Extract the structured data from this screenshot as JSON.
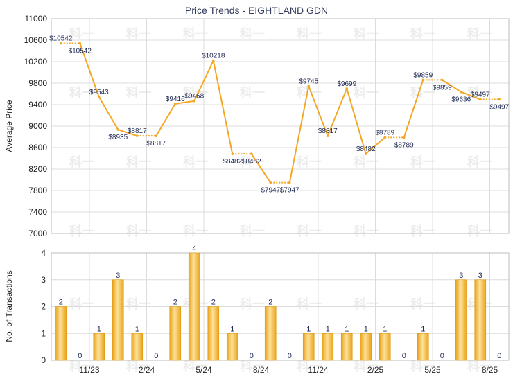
{
  "chart_data": [
    {
      "type": "line",
      "title": "Price Trends - EIGHTLAND GDN",
      "ylabel": "Average Price",
      "ylim": [
        7000,
        11000
      ],
      "yticks": [
        7000,
        7400,
        7800,
        8200,
        8600,
        9000,
        9400,
        9800,
        10200,
        10600,
        11000
      ],
      "xlim": [
        0,
        24
      ],
      "xticks": [
        {
          "x": 2,
          "label": "11/23"
        },
        {
          "x": 5,
          "label": "2/24"
        },
        {
          "x": 8,
          "label": "5/24"
        },
        {
          "x": 11,
          "label": "8/24"
        },
        {
          "x": 14,
          "label": "11/24"
        },
        {
          "x": 17,
          "label": "2/25"
        },
        {
          "x": 20,
          "label": "5/25"
        },
        {
          "x": 23,
          "label": "8/25"
        }
      ],
      "grid": true,
      "series": [
        {
          "color": "#f5a623",
          "values": [
            10542,
            10542,
            9543,
            8935,
            8817,
            8817,
            9416,
            9468,
            10218,
            8482,
            8482,
            7947,
            7947,
            9745,
            8817,
            9699,
            8482,
            8789,
            8789,
            9859,
            9859,
            9636,
            9497,
            9497
          ],
          "labels": [
            "$10542",
            "$10542",
            "$9543",
            "$8935",
            "$8817",
            "$8817",
            "$9416",
            "$9468",
            "$10218",
            "$8482",
            "$8482",
            "$7947",
            "$7947",
            "$9745",
            "$8817",
            "$9699",
            "$8482",
            "$8789",
            "$8789",
            "$9859",
            "$9859",
            "$9636",
            "$9497",
            "$9497"
          ],
          "dotted_segments": [
            [
              0,
              1
            ],
            [
              4,
              5
            ],
            [
              9,
              10
            ],
            [
              11,
              12
            ],
            [
              17,
              18
            ],
            [
              19,
              20
            ],
            [
              22,
              23
            ]
          ]
        }
      ]
    },
    {
      "type": "bar",
      "ylabel": "No. of Transactions",
      "ylim": [
        0,
        4
      ],
      "yticks": [
        0,
        1,
        2,
        3,
        4
      ],
      "grid": true,
      "color": "#f5b324",
      "values": [
        2,
        0,
        1,
        3,
        1,
        0,
        2,
        4,
        2,
        1,
        0,
        2,
        0,
        1,
        1,
        1,
        1,
        1,
        0,
        1,
        0,
        3,
        3,
        0
      ],
      "labels": [
        "2",
        "0",
        "1",
        "3",
        "1",
        "0",
        "2",
        "4",
        "2",
        "1",
        "0",
        "2",
        "0",
        "1",
        "1",
        "1",
        "1",
        "1",
        "0",
        "1",
        "0",
        "3",
        "3",
        "0"
      ]
    }
  ],
  "watermark": "科一"
}
